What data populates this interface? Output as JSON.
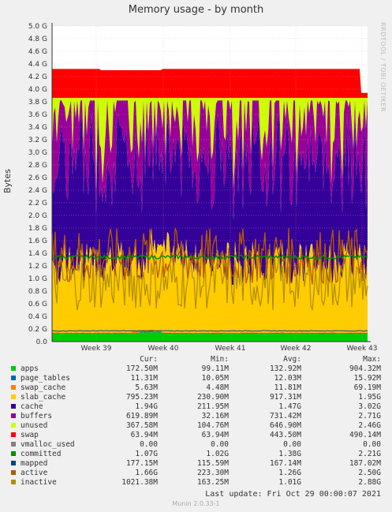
{
  "chart_data": {
    "type": "area",
    "title": "Memory usage - by month",
    "ylabel": "Bytes",
    "ylim": [
      0,
      5.0
    ],
    "yticks": [
      "0.0",
      "0.2 G",
      "0.4 G",
      "0.6 G",
      "0.8 G",
      "1.0 G",
      "1.2 G",
      "1.4 G",
      "1.6 G",
      "1.8 G",
      "2.0 G",
      "2.2 G",
      "2.4 G",
      "2.6 G",
      "2.8 G",
      "3.0 G",
      "3.2 G",
      "3.4 G",
      "3.6 G",
      "3.8 G",
      "4.0 G",
      "4.2 G",
      "4.4 G",
      "4.6 G",
      "4.8 G",
      "5.0 G"
    ],
    "xticks": [
      "Week 39",
      "Week 40",
      "Week 41",
      "Week 42",
      "Week 43"
    ],
    "stacked_bands_G": [
      {
        "name": "apps",
        "color": "#00cc00",
        "approx": 0.12
      },
      {
        "name": "page_tables",
        "color": "#0066b3",
        "approx": 0.01
      },
      {
        "name": "swap_cache",
        "color": "#ff8000",
        "approx": 0.01
      },
      {
        "name": "slab_cache",
        "color": "#ffcc00",
        "approx": 0.9
      },
      {
        "name": "cache",
        "color": "#330099",
        "approx": 1.5
      },
      {
        "name": "buffers",
        "color": "#990099",
        "approx": 0.8
      },
      {
        "name": "unused",
        "color": "#ccff00",
        "approx": 0.5
      },
      {
        "name": "swap",
        "color": "#ff0000",
        "approx": 0.44
      }
    ],
    "grid": true,
    "legend_position": "bottom"
  },
  "legend": {
    "headers": {
      "cur": "Cur:",
      "min": "Min:",
      "avg": "Avg:",
      "max": "Max:"
    },
    "rows": [
      {
        "name": "apps",
        "color": "#00cc00",
        "cur": "172.50M",
        "min": "99.11M",
        "avg": "132.92M",
        "max": "904.32M"
      },
      {
        "name": "page_tables",
        "color": "#0066b3",
        "cur": "11.31M",
        "min": "10.05M",
        "avg": "12.03M",
        "max": "15.92M"
      },
      {
        "name": "swap_cache",
        "color": "#ff8000",
        "cur": "5.63M",
        "min": "4.48M",
        "avg": "11.81M",
        "max": "69.19M"
      },
      {
        "name": "slab_cache",
        "color": "#ffcc00",
        "cur": "795.23M",
        "min": "230.90M",
        "avg": "917.31M",
        "max": "1.95G"
      },
      {
        "name": "cache",
        "color": "#330099",
        "cur": "1.94G",
        "min": "211.95M",
        "avg": "1.47G",
        "max": "3.02G"
      },
      {
        "name": "buffers",
        "color": "#990099",
        "cur": "619.89M",
        "min": "32.16M",
        "avg": "731.42M",
        "max": "2.71G"
      },
      {
        "name": "unused",
        "color": "#ccff00",
        "cur": "367.58M",
        "min": "104.76M",
        "avg": "646.90M",
        "max": "2.46G"
      },
      {
        "name": "swap",
        "color": "#ff0000",
        "cur": "63.94M",
        "min": "63.94M",
        "avg": "443.50M",
        "max": "490.14M"
      },
      {
        "name": "vmalloc_used",
        "color": "#808080",
        "cur": "0.00",
        "min": "0.00",
        "avg": "0.00",
        "max": "0.00"
      },
      {
        "name": "committed",
        "color": "#008f00",
        "cur": "1.07G",
        "min": "1.02G",
        "avg": "1.38G",
        "max": "2.21G"
      },
      {
        "name": "mapped",
        "color": "#00487d",
        "cur": "177.15M",
        "min": "115.59M",
        "avg": "167.14M",
        "max": "187.02M"
      },
      {
        "name": "active",
        "color": "#b35a00",
        "cur": "1.66G",
        "min": "223.30M",
        "avg": "1.26G",
        "max": "2.50G"
      },
      {
        "name": "inactive",
        "color": "#b38f00",
        "cur": "1021.38M",
        "min": "163.25M",
        "avg": "1.01G",
        "max": "2.88G"
      }
    ]
  },
  "watermark": "RRDTOOL / TOBI OETIKER",
  "footer": {
    "last_update": "Last update:  Fri Oct 29 00:00:07 2021",
    "munin": "Munin 2.0.33-1"
  }
}
